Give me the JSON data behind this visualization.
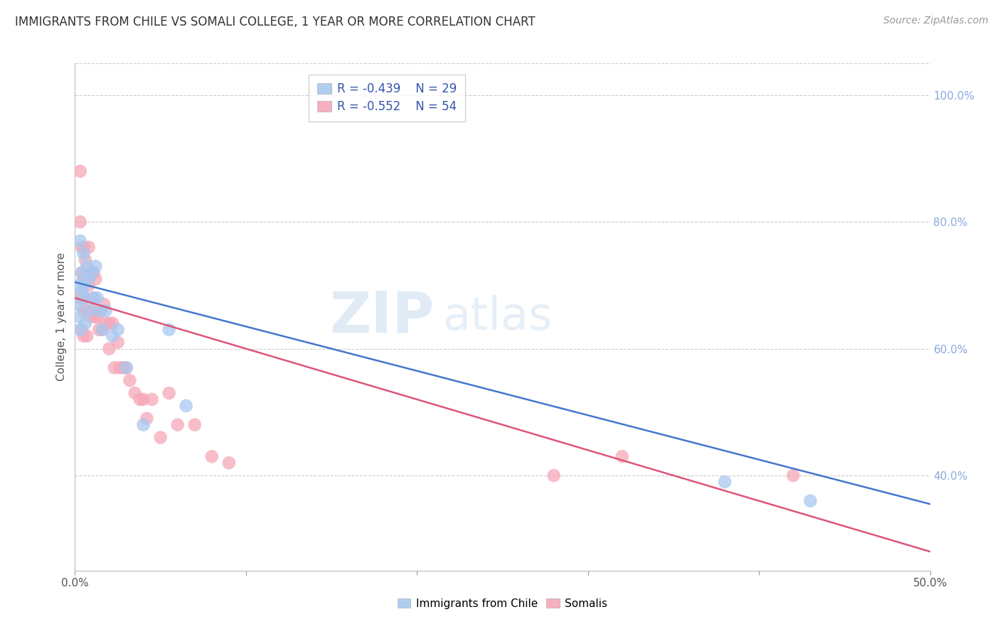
{
  "title": "IMMIGRANTS FROM CHILE VS SOMALI COLLEGE, 1 YEAR OR MORE CORRELATION CHART",
  "source": "Source: ZipAtlas.com",
  "ylabel": "College, 1 year or more",
  "xlim": [
    0.0,
    0.5
  ],
  "ylim": [
    0.25,
    1.05
  ],
  "legend_blue_r": "R = -0.439",
  "legend_blue_n": "N = 29",
  "legend_pink_r": "R = -0.552",
  "legend_pink_n": "N = 54",
  "blue_color": "#A8C8F0",
  "pink_color": "#F5A8B8",
  "blue_line_color": "#4477CC",
  "pink_line_color": "#DD5577",
  "watermark_zip": "ZIP",
  "watermark_atlas": "atlas",
  "grid_color": "#CCCCCC",
  "right_tick_color": "#88AADD",
  "yticks_right": [
    0.4,
    0.6,
    0.8,
    1.0
  ],
  "yticklabels_right": [
    "40.0%",
    "60.0%",
    "80.0%",
    "100.0%"
  ],
  "chile_points_x": [
    0.002,
    0.002,
    0.003,
    0.003,
    0.003,
    0.004,
    0.004,
    0.005,
    0.005,
    0.006,
    0.006,
    0.007,
    0.008,
    0.009,
    0.01,
    0.011,
    0.012,
    0.013,
    0.015,
    0.016,
    0.018,
    0.022,
    0.025,
    0.03,
    0.04,
    0.055,
    0.065,
    0.38,
    0.43
  ],
  "chile_points_y": [
    0.7,
    0.67,
    0.65,
    0.63,
    0.77,
    0.72,
    0.69,
    0.75,
    0.7,
    0.68,
    0.64,
    0.73,
    0.71,
    0.66,
    0.72,
    0.68,
    0.73,
    0.68,
    0.66,
    0.63,
    0.66,
    0.62,
    0.63,
    0.57,
    0.48,
    0.63,
    0.51,
    0.39,
    0.36
  ],
  "somali_points_x": [
    0.002,
    0.003,
    0.003,
    0.004,
    0.004,
    0.004,
    0.004,
    0.005,
    0.005,
    0.005,
    0.005,
    0.006,
    0.006,
    0.007,
    0.007,
    0.008,
    0.008,
    0.009,
    0.009,
    0.01,
    0.01,
    0.011,
    0.011,
    0.012,
    0.012,
    0.013,
    0.014,
    0.015,
    0.016,
    0.017,
    0.018,
    0.02,
    0.02,
    0.022,
    0.023,
    0.025,
    0.026,
    0.028,
    0.03,
    0.032,
    0.035,
    0.038,
    0.04,
    0.042,
    0.045,
    0.05,
    0.055,
    0.06,
    0.07,
    0.08,
    0.09,
    0.28,
    0.32,
    0.42
  ],
  "somali_points_y": [
    0.68,
    0.88,
    0.8,
    0.76,
    0.72,
    0.68,
    0.63,
    0.76,
    0.71,
    0.66,
    0.62,
    0.74,
    0.68,
    0.66,
    0.62,
    0.76,
    0.7,
    0.72,
    0.65,
    0.72,
    0.66,
    0.72,
    0.68,
    0.71,
    0.65,
    0.65,
    0.63,
    0.66,
    0.63,
    0.67,
    0.64,
    0.64,
    0.6,
    0.64,
    0.57,
    0.61,
    0.57,
    0.57,
    0.57,
    0.55,
    0.53,
    0.52,
    0.52,
    0.49,
    0.52,
    0.46,
    0.53,
    0.48,
    0.48,
    0.43,
    0.42,
    0.4,
    0.43,
    0.4
  ],
  "blue_line_x": [
    0.0,
    0.5
  ],
  "blue_line_y": [
    0.705,
    0.355
  ],
  "pink_line_x": [
    0.0,
    0.5
  ],
  "pink_line_y": [
    0.68,
    0.28
  ]
}
